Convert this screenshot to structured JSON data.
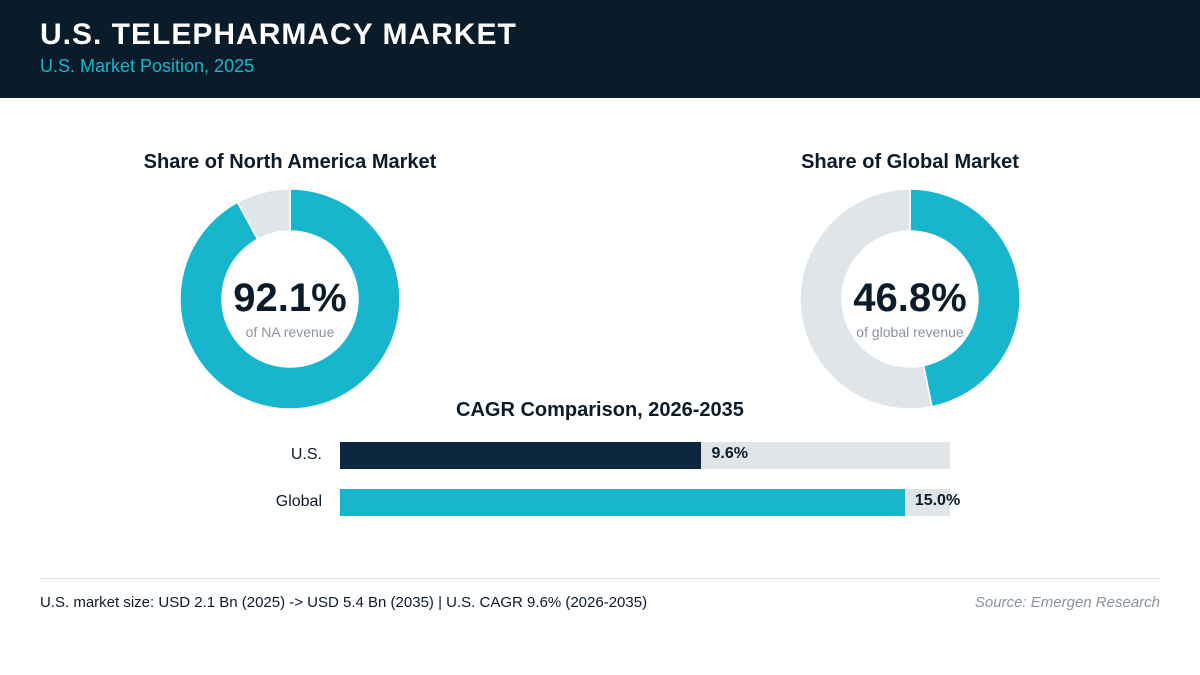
{
  "header": {
    "title": "U.S. TELEPHARMACY MARKET",
    "subtitle": "U.S. Market Position, 2025"
  },
  "colors": {
    "header_bg": "#0a1b2a",
    "accent": "#17b6cc",
    "navy": "#0d2740",
    "track": "#e0e5ea"
  },
  "chart_data": [
    {
      "type": "pie",
      "title": "Share of North America Market",
      "center_value": "92.1%",
      "center_caption": "of NA revenue",
      "values": [
        92.1,
        7.9
      ],
      "colors": [
        "#17b6cc",
        "#e0e5ea"
      ]
    },
    {
      "type": "pie",
      "title": "Share of Global Market",
      "center_value": "46.8%",
      "center_caption": "of global revenue",
      "values": [
        46.8,
        53.2
      ],
      "colors": [
        "#17b6cc",
        "#e0e5ea"
      ]
    },
    {
      "type": "bar",
      "title": "CAGR Comparison, 2026-2035",
      "categories": [
        "U.S.",
        "Global"
      ],
      "values": [
        9.6,
        15.0
      ],
      "labels": [
        "9.6%",
        "15.0%"
      ],
      "colors": [
        "#0d2740",
        "#17b6cc"
      ],
      "xlim": [
        0,
        16.2
      ]
    }
  ],
  "footer": {
    "note": "U.S. market size: USD 2.1 Bn (2025) -> USD 5.4 Bn (2035)  |  U.S. CAGR 9.6% (2026-2035)",
    "source": "Source: Emergen Research"
  }
}
